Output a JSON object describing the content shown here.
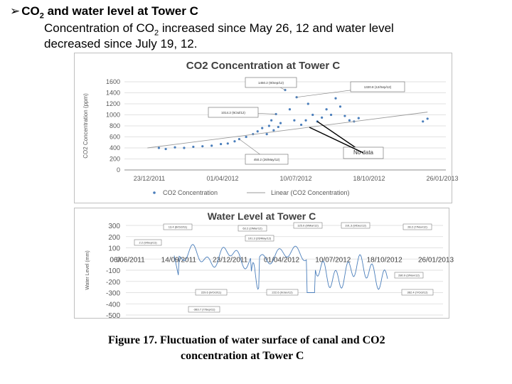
{
  "slide": {
    "bullet_title_main": "CO",
    "bullet_title_sub": "2",
    "bullet_title_rest": " and water level at Tower C",
    "line1_a": "Concentration of CO",
    "line1_sub": "2",
    "line1_b": " increased since May 26, 12 and water level",
    "line2": "decreased since July 19, 12.",
    "caption_line1": "Figure 17.  Fluctuation of water surface of canal and CO2",
    "caption_line2": "concentration at Tower C"
  },
  "colors": {
    "series": "#4a7ebb",
    "trend": "#9b9b9b",
    "grid": "#d9d9d9",
    "axis_text": "#595959"
  },
  "chart_data": [
    {
      "type": "scatter",
      "title": "CO2 Concentration at Tower C",
      "ylabel": "CO2 Concentration (ppm)",
      "xlabel": "",
      "ylim": [
        0,
        1600
      ],
      "yticks": [
        0,
        200,
        400,
        600,
        800,
        1000,
        1200,
        1400,
        1600
      ],
      "xtick_labels": [
        "23/12/2011",
        "01/04/2012",
        "10/07/2012",
        "18/10/2012",
        "26/01/2013"
      ],
      "legend": [
        "CO2 Concentration",
        "Linear (CO2 Concentration)"
      ],
      "callouts": [
        "1450.2 (9/Sep/12)",
        "1320.8 (12/Sep/12)",
        "1014.2 (9/Jul/12)",
        "No data",
        "450.2 (26/May/12)"
      ],
      "series": [
        {
          "name": "CO2 Concentration",
          "points": [
            [
              0.15,
              400
            ],
            [
              0.18,
              380
            ],
            [
              0.22,
              410
            ],
            [
              0.26,
              400
            ],
            [
              0.3,
              420
            ],
            [
              0.34,
              430
            ],
            [
              0.38,
              440
            ],
            [
              0.42,
              470
            ],
            [
              0.45,
              480
            ],
            [
              0.48,
              520
            ],
            [
              0.5,
              560
            ],
            [
              0.53,
              600
            ],
            [
              0.56,
              650
            ],
            [
              0.58,
              700
            ],
            [
              0.6,
              760
            ],
            [
              0.62,
              650
            ],
            [
              0.63,
              800
            ],
            [
              0.64,
              900
            ],
            [
              0.65,
              720
            ],
            [
              0.66,
              1014
            ],
            [
              0.67,
              780
            ],
            [
              0.68,
              850
            ],
            [
              0.7,
              1450
            ],
            [
              0.72,
              1100
            ],
            [
              0.74,
              900
            ],
            [
              0.75,
              1320
            ],
            [
              0.77,
              820
            ],
            [
              0.79,
              900
            ],
            [
              0.8,
              1200
            ],
            [
              0.82,
              1000
            ],
            [
              0.84,
              880
            ],
            [
              0.86,
              950
            ],
            [
              0.88,
              1100
            ],
            [
              0.9,
              1000
            ],
            [
              0.92,
              1300
            ],
            [
              0.94,
              1150
            ],
            [
              0.96,
              980
            ],
            [
              0.98,
              900
            ],
            [
              1.0,
              880
            ],
            [
              1.02,
              940
            ],
            [
              1.3,
              880
            ],
            [
              1.32,
              930
            ]
          ]
        },
        {
          "name": "Linear (CO2 Concentration)",
          "line": [
            [
              0.1,
              400
            ],
            [
              1.32,
              1050
            ]
          ]
        }
      ]
    },
    {
      "type": "line",
      "title": "Water Level at Tower C",
      "ylabel": "Water Level (mm)",
      "ylim": [
        -500,
        300
      ],
      "yticks": [
        -500,
        -400,
        -300,
        -200,
        -100,
        0,
        100,
        200,
        300
      ],
      "xtick_labels": [
        "06/06/2011",
        "14/09/2011",
        "23/12/2011",
        "01/04/2012",
        "10/07/2012",
        "18/10/2012",
        "26/01/2013"
      ],
      "callouts": [
        "13.4 (6/Oct/11)",
        "2.2 (9/Sep/11)",
        "63.2 (2/Mar/12)",
        "125.0 (9/Mar/12)",
        "191.3 (9/Dec/12)",
        "28.2 (7/Nov/12)",
        "101.3 (26/May/12)",
        "280.9 (3/Nov/12)",
        "229.6 (9/Oct/11)",
        "222.6 (9/Jan/12)",
        "362.4 (7/Oct/12)",
        "-383.7 (7/Sep/11)"
      ]
    }
  ]
}
